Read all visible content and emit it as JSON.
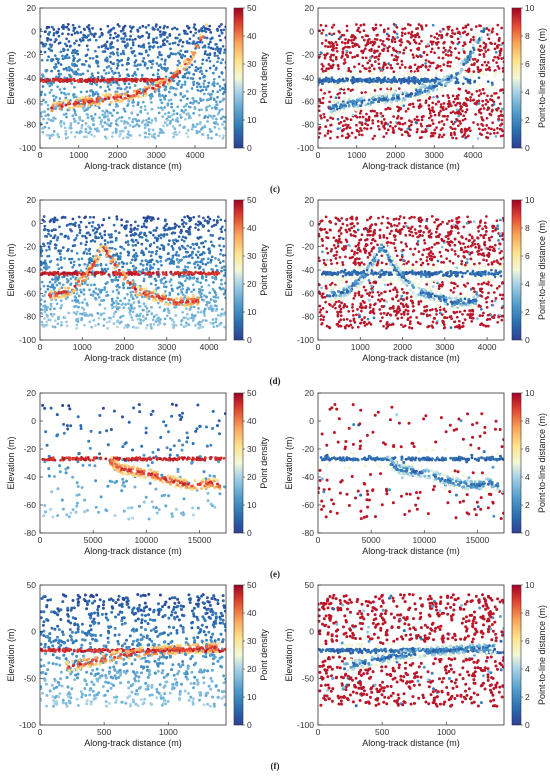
{
  "figure": {
    "labels": [
      "(c)",
      "(d)",
      "(e)",
      "(f)"
    ]
  },
  "chart_data": [
    {
      "type": "scatter",
      "row": 0,
      "col": 0,
      "xlabel": "Along-track distance (m)",
      "ylabel": "Elevation (m)",
      "xlim": [
        0,
        4800
      ],
      "ylim": [
        -100,
        20
      ],
      "xticks": [
        0,
        1000,
        2000,
        3000,
        4000
      ],
      "yticks": [
        -100,
        -80,
        -60,
        -40,
        -20,
        0,
        20
      ],
      "colorbar": {
        "label": "Point density",
        "range": [
          0,
          50
        ],
        "ticks": [
          0,
          10,
          20,
          30,
          40,
          50
        ],
        "colormap": "red-yellow-blue-reversed"
      },
      "signal": {
        "horizontal_y": -42,
        "horizontal_x": [
          0,
          3200
        ],
        "profile": [
          [
            300,
            -66
          ],
          [
            800,
            -62
          ],
          [
            1500,
            -59
          ],
          [
            2200,
            -56
          ],
          [
            2800,
            -50
          ],
          [
            3200,
            -45
          ],
          [
            3600,
            -35
          ],
          [
            3900,
            -22
          ],
          [
            4100,
            -10
          ],
          [
            4300,
            2
          ]
        ]
      },
      "noise": {
        "y_range": [
          -92,
          6
        ],
        "density": "high"
      }
    },
    {
      "type": "scatter",
      "row": 0,
      "col": 1,
      "xlabel": "Along-track distance (m)",
      "ylabel": "Elevation (m)",
      "xlim": [
        0,
        4800
      ],
      "ylim": [
        -100,
        20
      ],
      "xticks": [
        0,
        1000,
        2000,
        3000,
        4000
      ],
      "yticks": [
        -100,
        -80,
        -60,
        -40,
        -20,
        0,
        20
      ],
      "colorbar": {
        "label": "Point-to-line distance (m)",
        "range": [
          0,
          10
        ],
        "ticks": [
          0,
          2,
          4,
          6,
          8,
          10
        ],
        "colormap": "red-yellow-blue-reversed"
      },
      "signal": {
        "horizontal_y": -42,
        "horizontal_x": [
          0,
          3200
        ],
        "profile": [
          [
            300,
            -66
          ],
          [
            800,
            -62
          ],
          [
            1500,
            -59
          ],
          [
            2200,
            -56
          ],
          [
            2800,
            -50
          ],
          [
            3200,
            -45
          ],
          [
            3600,
            -35
          ],
          [
            3900,
            -22
          ],
          [
            4100,
            -10
          ],
          [
            4300,
            2
          ]
        ]
      },
      "noise": {
        "y_range": [
          -92,
          6
        ],
        "density": "high"
      }
    },
    {
      "type": "scatter",
      "row": 1,
      "col": 0,
      "xlabel": "Along-track distance (m)",
      "ylabel": "Elevation (m)",
      "xlim": [
        0,
        4400
      ],
      "ylim": [
        -100,
        20
      ],
      "xticks": [
        0,
        1000,
        2000,
        3000,
        4000
      ],
      "yticks": [
        -100,
        -80,
        -60,
        -40,
        -20,
        0,
        20
      ],
      "colorbar": {
        "label": "Point density",
        "range": [
          0,
          50
        ],
        "ticks": [
          0,
          10,
          20,
          30,
          40,
          50
        ],
        "colormap": "red-yellow-blue-reversed"
      },
      "signal": {
        "horizontal_y": -43,
        "horizontal_x": [
          0,
          4300
        ],
        "profile": [
          [
            200,
            -62
          ],
          [
            700,
            -58
          ],
          [
            1100,
            -45
          ],
          [
            1500,
            -20
          ],
          [
            1900,
            -42
          ],
          [
            2300,
            -58
          ],
          [
            2700,
            -62
          ],
          [
            3200,
            -68
          ],
          [
            3800,
            -66
          ]
        ]
      },
      "noise": {
        "y_range": [
          -90,
          6
        ],
        "density": "high"
      }
    },
    {
      "type": "scatter",
      "row": 1,
      "col": 1,
      "xlabel": "Along-track distance (m)",
      "ylabel": "Elevation (m)",
      "xlim": [
        0,
        4400
      ],
      "ylim": [
        -100,
        20
      ],
      "xticks": [
        0,
        1000,
        2000,
        3000,
        4000
      ],
      "yticks": [
        -100,
        -80,
        -60,
        -40,
        -20,
        0,
        20
      ],
      "colorbar": {
        "label": "Point-to-line distance (m)",
        "range": [
          0,
          10
        ],
        "ticks": [
          0,
          2,
          4,
          6,
          8,
          10
        ],
        "colormap": "red-yellow-blue-reversed"
      },
      "signal": {
        "horizontal_y": -43,
        "horizontal_x": [
          0,
          4300
        ],
        "profile": [
          [
            200,
            -62
          ],
          [
            700,
            -58
          ],
          [
            1100,
            -45
          ],
          [
            1500,
            -20
          ],
          [
            1900,
            -42
          ],
          [
            2300,
            -58
          ],
          [
            2700,
            -62
          ],
          [
            3200,
            -68
          ],
          [
            3800,
            -66
          ]
        ]
      },
      "noise": {
        "y_range": [
          -90,
          6
        ],
        "density": "high"
      }
    },
    {
      "type": "scatter",
      "row": 2,
      "col": 0,
      "xlabel": "Along-track distance (m)",
      "ylabel": "Elevation (m)",
      "xlim": [
        0,
        17500
      ],
      "ylim": [
        -80,
        20
      ],
      "xticks": [
        0,
        5000,
        10000,
        15000
      ],
      "yticks": [
        -80,
        -60,
        -40,
        -20,
        0,
        20
      ],
      "colorbar": {
        "label": "Point density",
        "range": [
          0,
          50
        ],
        "ticks": [
          0,
          10,
          20,
          30,
          40,
          50
        ],
        "colormap": "red-yellow-blue-reversed"
      },
      "signal": {
        "horizontal_y": -27,
        "horizontal_x": [
          0,
          17500
        ],
        "profile": [
          [
            6500,
            -28
          ],
          [
            7500,
            -34
          ],
          [
            9000,
            -36
          ],
          [
            10500,
            -38
          ],
          [
            12000,
            -42
          ],
          [
            13500,
            -45
          ],
          [
            15000,
            -46
          ],
          [
            16000,
            -44
          ],
          [
            17000,
            -46
          ]
        ]
      },
      "noise": {
        "y_range": [
          -70,
          12
        ],
        "density": "low"
      }
    },
    {
      "type": "scatter",
      "row": 2,
      "col": 1,
      "xlabel": "Along-track distance (m)",
      "ylabel": "Elevation (m)",
      "xlim": [
        0,
        17500
      ],
      "ylim": [
        -80,
        20
      ],
      "xticks": [
        0,
        5000,
        10000,
        15000
      ],
      "yticks": [
        -80,
        -60,
        -40,
        -20,
        0,
        20
      ],
      "colorbar": {
        "label": "Point-to-line distance (m)",
        "range": [
          0,
          10
        ],
        "ticks": [
          0,
          2,
          4,
          6,
          8,
          10
        ],
        "colormap": "red-yellow-blue-reversed"
      },
      "signal": {
        "horizontal_y": -27,
        "horizontal_x": [
          0,
          17500
        ],
        "profile": [
          [
            6500,
            -28
          ],
          [
            7500,
            -34
          ],
          [
            9000,
            -36
          ],
          [
            10500,
            -38
          ],
          [
            12000,
            -42
          ],
          [
            13500,
            -45
          ],
          [
            15000,
            -46
          ],
          [
            16000,
            -44
          ],
          [
            17000,
            -46
          ]
        ]
      },
      "noise": {
        "y_range": [
          -70,
          12
        ],
        "density": "low"
      }
    },
    {
      "type": "scatter",
      "row": 3,
      "col": 0,
      "xlabel": "Along-track distance (m)",
      "ylabel": "Elevation (m)",
      "xlim": [
        0,
        1450
      ],
      "ylim": [
        -100,
        50
      ],
      "xticks": [
        0,
        500,
        1000
      ],
      "yticks": [
        -100,
        -50,
        0,
        50
      ],
      "colorbar": {
        "label": "Point density",
        "range": [
          0,
          50
        ],
        "ticks": [
          0,
          10,
          20,
          30,
          40,
          50
        ],
        "colormap": "red-yellow-blue-reversed"
      },
      "signal": {
        "horizontal_y": -20,
        "horizontal_x": [
          0,
          1450
        ],
        "profile": [
          [
            200,
            -38
          ],
          [
            400,
            -32
          ],
          [
            600,
            -26
          ],
          [
            800,
            -22
          ],
          [
            1000,
            -20
          ],
          [
            1200,
            -18
          ],
          [
            1400,
            -17
          ]
        ]
      },
      "noise": {
        "y_range": [
          -80,
          40
        ],
        "density": "medium"
      }
    },
    {
      "type": "scatter",
      "row": 3,
      "col": 1,
      "xlabel": "Along-track distance (m)",
      "ylabel": "Elevation (m)",
      "xlim": [
        0,
        1450
      ],
      "ylim": [
        -100,
        50
      ],
      "xticks": [
        0,
        500,
        1000
      ],
      "yticks": [
        -100,
        -50,
        0,
        50
      ],
      "colorbar": {
        "label": "Point-to-line distance (m)",
        "range": [
          0,
          10
        ],
        "ticks": [
          0,
          2,
          4,
          6,
          8,
          10
        ],
        "colormap": "red-yellow-blue-reversed"
      },
      "signal": {
        "horizontal_y": -20,
        "horizontal_x": [
          0,
          1450
        ],
        "profile": [
          [
            200,
            -38
          ],
          [
            400,
            -32
          ],
          [
            600,
            -26
          ],
          [
            800,
            -22
          ],
          [
            1000,
            -20
          ],
          [
            1200,
            -18
          ],
          [
            1400,
            -17
          ]
        ]
      },
      "noise": {
        "y_range": [
          -80,
          40
        ],
        "density": "medium"
      }
    }
  ]
}
